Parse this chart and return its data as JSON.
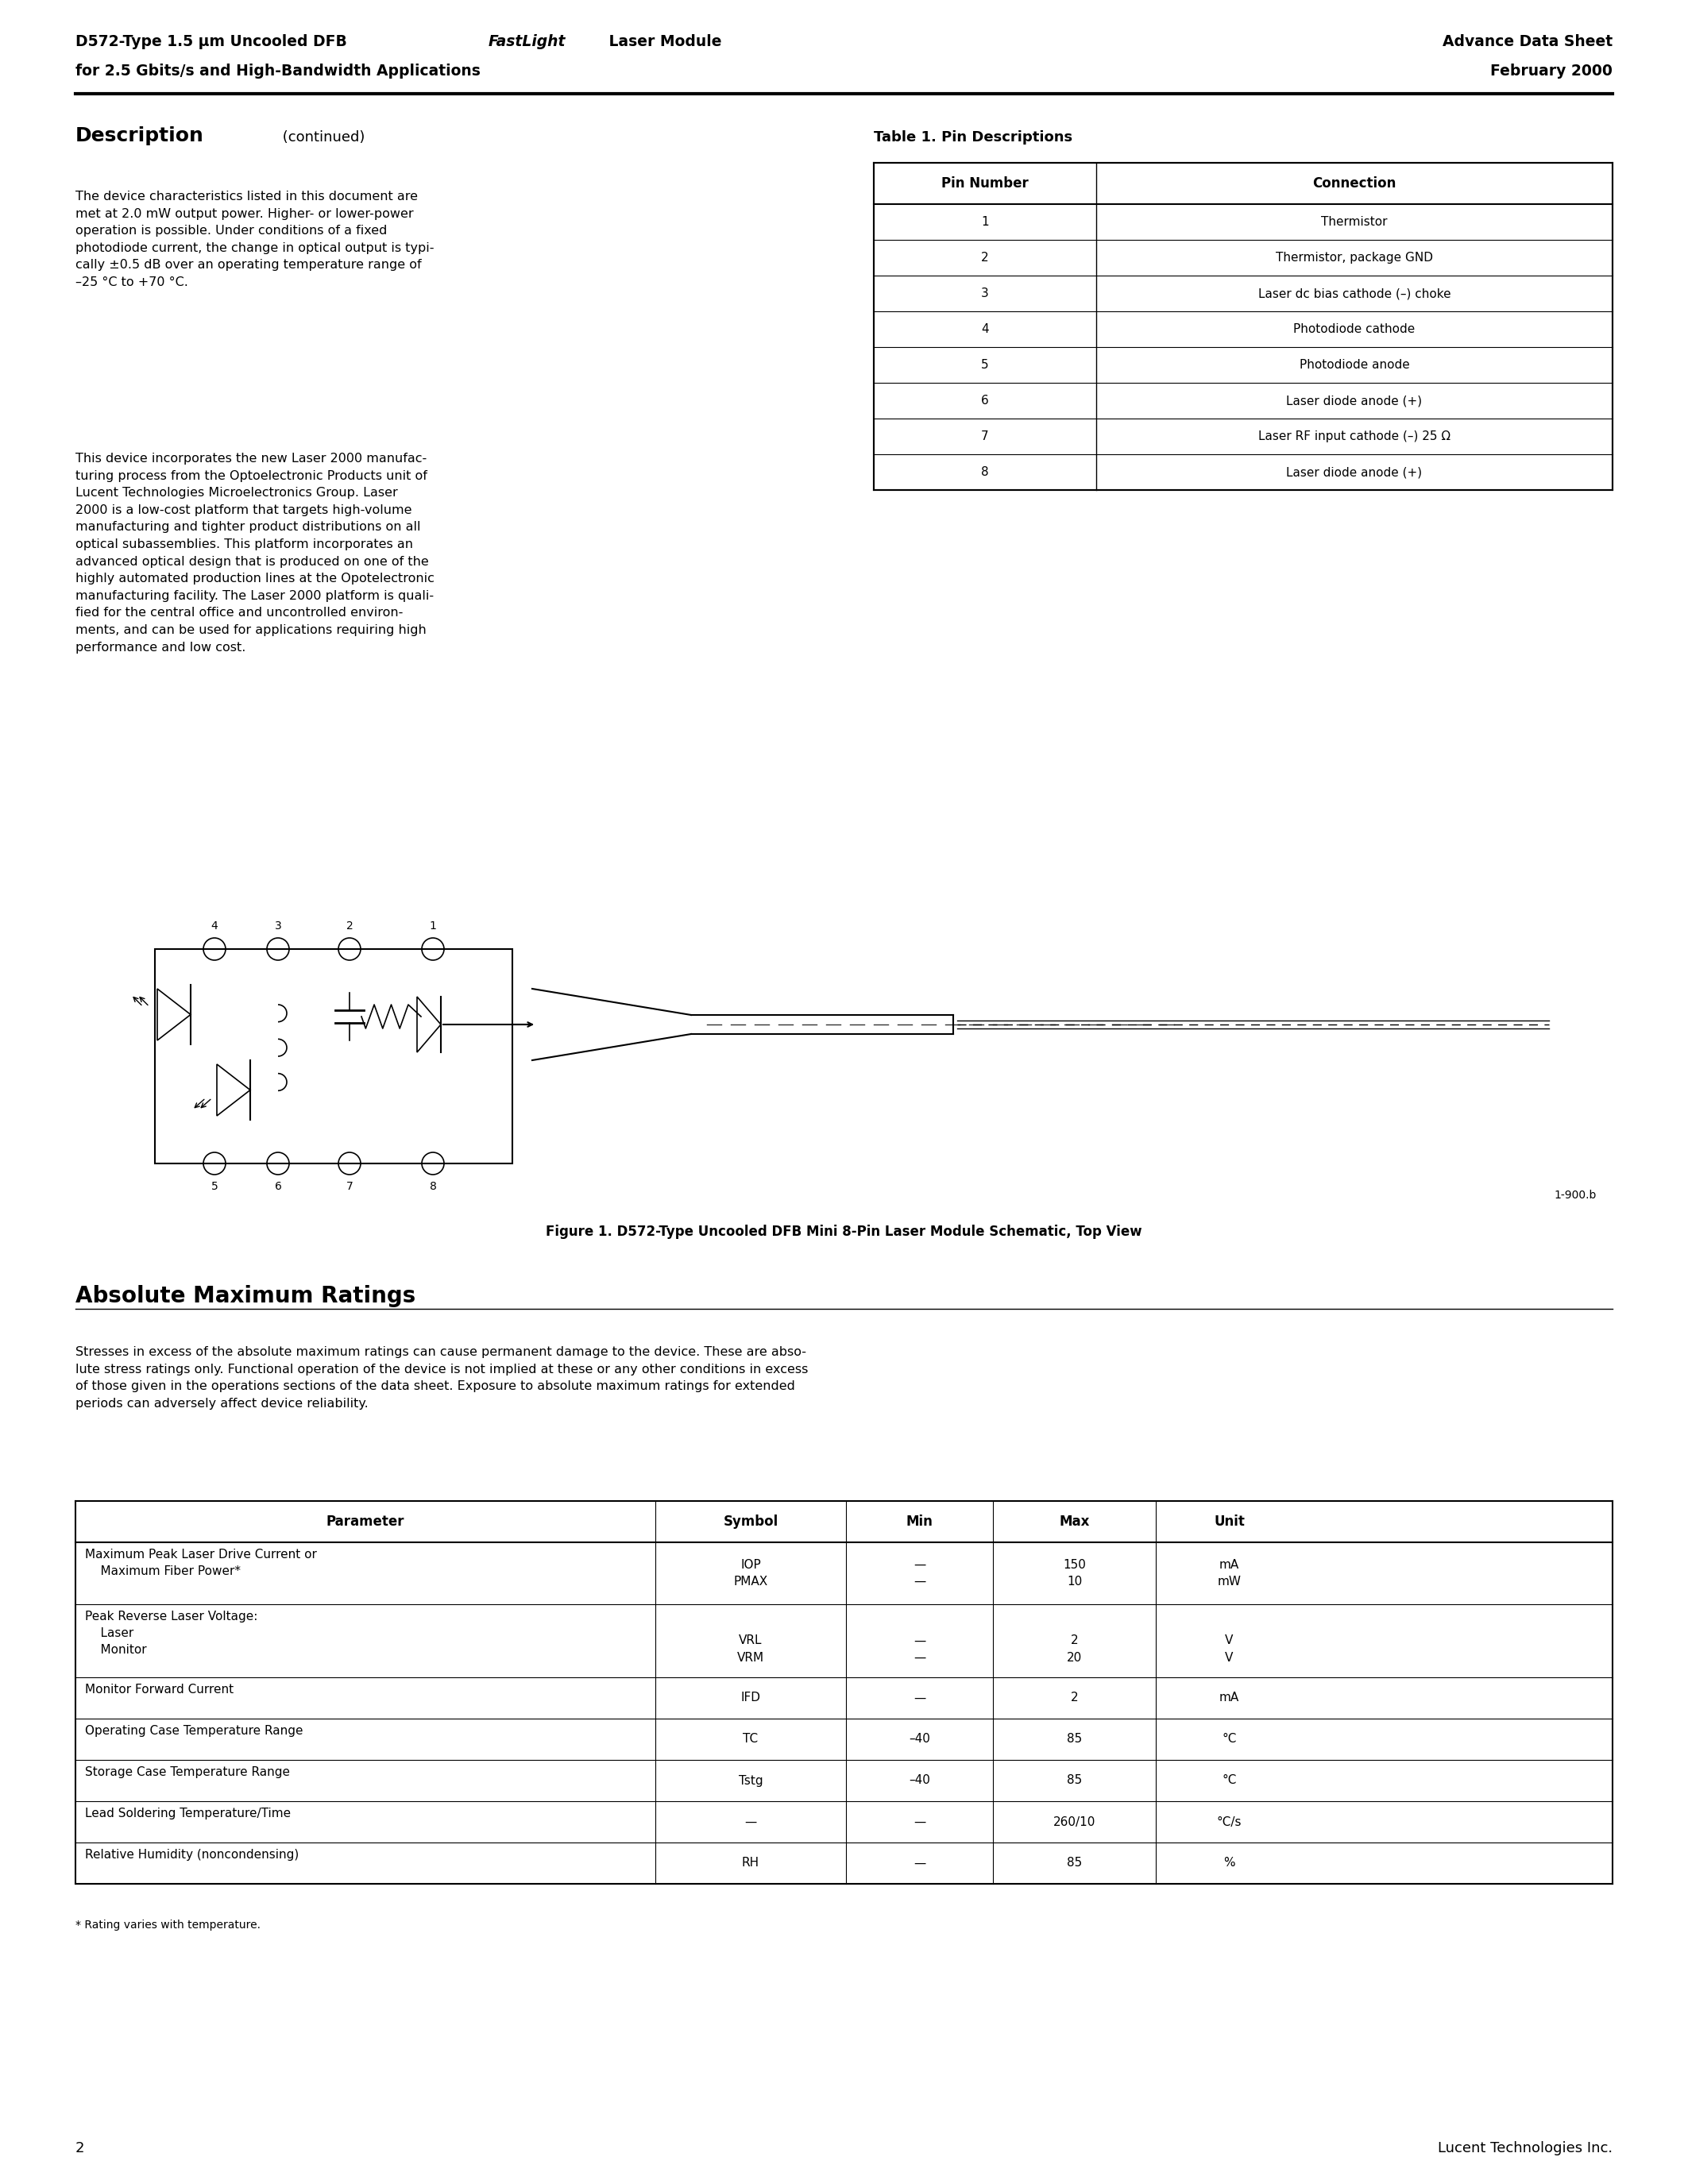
{
  "page_title_left_line1_pre": "D572-Type 1.5 μm Uncooled DFB ",
  "page_title_left_line1_italic": "FastLight",
  "page_title_left_line1_post": " Laser Module",
  "page_title_left_line2": "for 2.5 Gbits/s and High-Bandwidth Applications",
  "page_title_right_line1": "Advance Data Sheet",
  "page_title_right_line2": "February 2000",
  "section1_title_bold": "Description",
  "section1_title_normal": " (continued)",
  "section1_para1": "The device characteristics listed in this document are\nmet at 2.0 mW output power. Higher- or lower-power\noperation is possible. Under conditions of a fixed\nphotodiode current, the change in optical output is typi-\ncally ±0.5 dB over an operating temperature range of\n–25 °C to +70 °C.",
  "section1_para2": "This device incorporates the new Laser 2000 manufac-\nturing process from the Optoelectronic Products unit of\nLucent Technologies Microelectronics Group. Laser\n2000 is a low-cost platform that targets high-volume\nmanufacturing and tighter product distributions on all\noptical subassemblies. This platform incorporates an\nadvanced optical design that is produced on one of the\nhighly automated production lines at the Opotelectronic\nmanufacturing facility. The Laser 2000 platform is quali-\nfied for the central office and uncontrolled environ-\nments, and can be used for applications requiring high\nperformance and low cost.",
  "table1_title": "Table 1. Pin Descriptions",
  "table1_headers": [
    "Pin Number",
    "Connection"
  ],
  "table1_rows": [
    [
      "1",
      "Thermistor"
    ],
    [
      "2",
      "Thermistor, package GND"
    ],
    [
      "3",
      "Laser dc bias cathode (–) choke"
    ],
    [
      "4",
      "Photodiode cathode"
    ],
    [
      "5",
      "Photodiode anode"
    ],
    [
      "6",
      "Laser diode anode (+)"
    ],
    [
      "7",
      "Laser RF input cathode (–) 25 Ω"
    ],
    [
      "8",
      "Laser diode anode (+)"
    ]
  ],
  "figure1_caption": "Figure 1. D572-Type Uncooled DFB Mini 8-Pin Laser Module Schematic, Top View",
  "figure1_label": "1-900.b",
  "section2_title": "Absolute Maximum Ratings",
  "section2_para": "Stresses in excess of the absolute maximum ratings can cause permanent damage to the device. These are abso-\nlute stress ratings only. Functional operation of the device is not implied at these or any other conditions in excess\nof those given in the operations sections of the data sheet. Exposure to absolute maximum ratings for extended\nperiods can adversely affect device reliability.",
  "table2_headers": [
    "Parameter",
    "Symbol",
    "Min",
    "Max",
    "Unit"
  ],
  "footnote": "* Rating varies with temperature.",
  "page_number": "2",
  "company": "Lucent Technologies Inc.",
  "bg_color": "#ffffff",
  "text_color": "#000000",
  "line_color": "#000000"
}
